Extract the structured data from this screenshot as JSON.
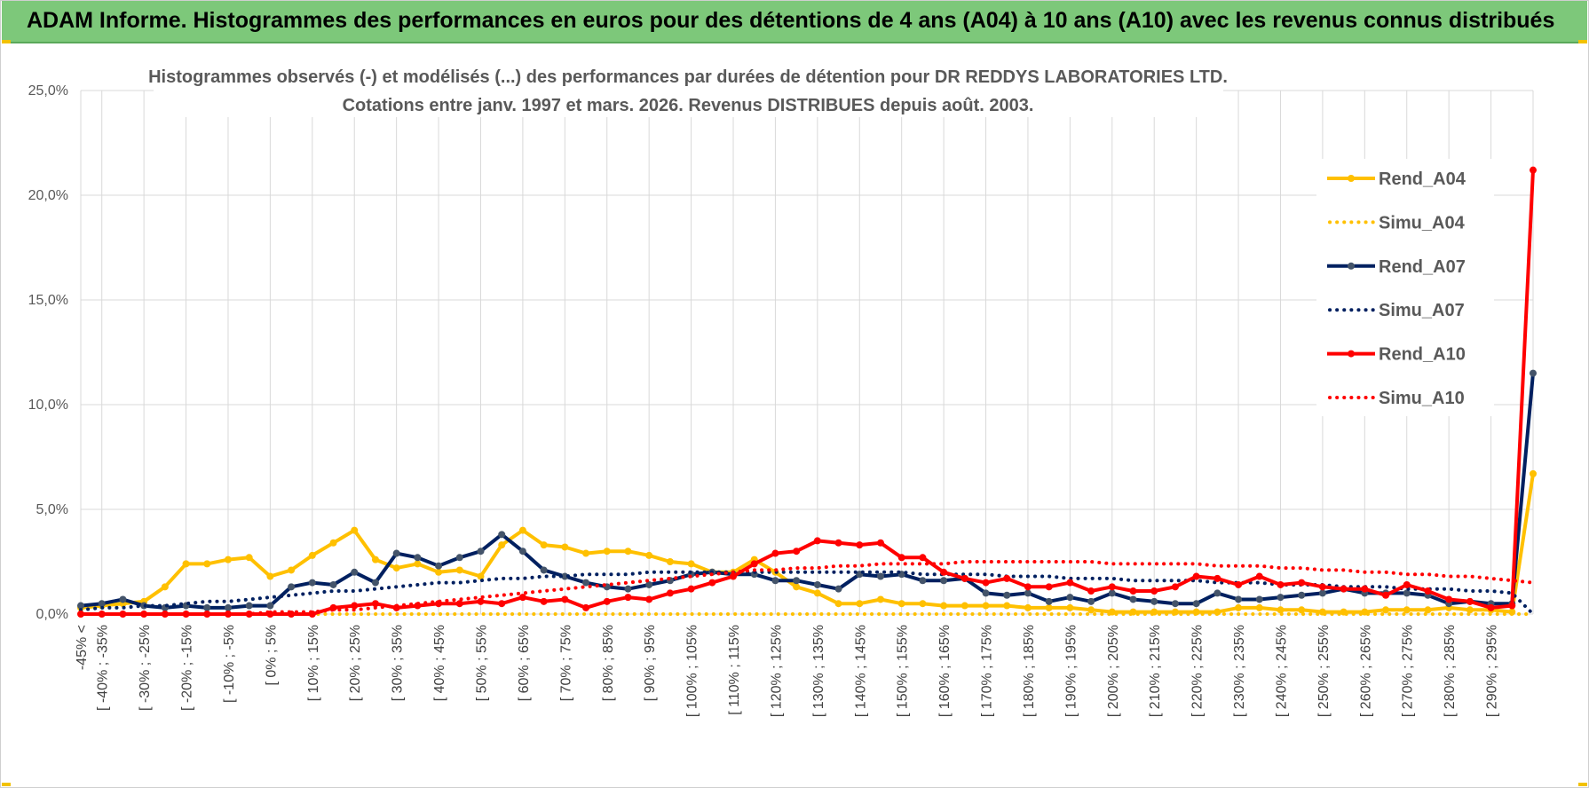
{
  "header": {
    "title": "ADAM Informe. Histogrammes des performances en euros pour des détentions de 4 ans (A04) à 10 ans (A10) avec les revenus connus distribués"
  },
  "colors": {
    "header_bg": "#7dc87a",
    "a04": "#ffc000",
    "a07": "#002060",
    "a10": "#ff0000",
    "grid": "#d9d9d9"
  },
  "chart_data": {
    "type": "line",
    "title_line1": "Histogrammes observés (-) et modélisés (...) des performances par durées de détention pour DR REDDYS LABORATORIES  LTD.",
    "title_line2": "Cotations entre janv. 1997 et mars. 2026.  Revenus DISTRIBUES depuis août. 2003.",
    "ylim": [
      0,
      25
    ],
    "yticks": [
      "0,0%",
      "5,0%",
      "10,0%",
      "15,0%",
      "20,0%",
      "25,0%"
    ],
    "tick_labels": [
      "-45% <",
      "[ -40% ; -35%",
      "[ -30% ; -25%",
      "[ -20% ; -15%",
      "[ -10% ; -5%",
      "[ 0% ; 5%",
      "[ 10% ; 15%",
      "[ 20% ; 25%",
      "[ 30% ; 35%",
      "[ 40% ; 45%",
      "[ 50% ; 55%",
      "[ 60% ; 65%",
      "[ 70% ; 75%",
      "[ 80% ; 85%",
      "[ 90% ; 95%",
      "[ 100% ; 105%",
      "[ 110% ; 115%",
      "[ 120% ; 125%",
      "[ 130% ; 135%",
      "[ 140% ; 145%",
      "[ 150% ; 155%",
      "[ 160% ; 165%",
      "[ 170% ; 175%",
      "[ 180% ; 185%",
      "[ 190% ; 195%",
      "[ 200% ; 205%",
      "[ 210% ; 215%",
      "[ 220% ; 225%",
      "[ 230% ; 235%",
      "[ 240% ; 245%",
      "[ 250% ; 255%",
      "[ 260% ; 265%",
      "[ 270% ; 275%",
      "[ 280% ; 285%",
      "[ 290% ; 295%"
    ],
    "num_points": 70,
    "legend_position": "right",
    "series": [
      {
        "name": "Rend_A04",
        "style": "solid",
        "color": "#ffc000",
        "values": [
          0.3,
          0.4,
          0.5,
          0.6,
          1.3,
          2.4,
          2.4,
          2.6,
          2.7,
          1.8,
          2.1,
          2.8,
          3.4,
          4.0,
          2.6,
          2.2,
          2.4,
          2.0,
          2.1,
          1.8,
          3.3,
          4.0,
          3.3,
          3.2,
          2.9,
          3.0,
          3.0,
          2.8,
          2.5,
          2.4,
          2.0,
          2.0,
          2.6,
          2.0,
          1.3,
          1.0,
          0.5,
          0.5,
          0.7,
          0.5,
          0.5,
          0.4,
          0.4,
          0.4,
          0.4,
          0.3,
          0.3,
          0.3,
          0.2,
          0.1,
          0.1,
          0.1,
          0.1,
          0.1,
          0.1,
          0.3,
          0.3,
          0.2,
          0.2,
          0.1,
          0.1,
          0.1,
          0.2,
          0.2,
          0.2,
          0.3,
          0.2,
          0.2,
          0.1,
          6.7
        ]
      },
      {
        "name": "Simu_A04",
        "style": "dotted",
        "color": "#ffc000",
        "values": [
          0.0,
          0.0,
          0.0,
          0.0,
          0.0,
          0.0,
          0.0,
          0.0,
          0.0,
          0.0,
          0.0,
          0.0,
          0.0,
          0.0,
          0.0,
          0.0,
          0.0,
          0.0,
          0.0,
          0.0,
          0.0,
          0.0,
          0.0,
          0.0,
          0.0,
          0.0,
          0.0,
          0.0,
          0.0,
          0.0,
          0.0,
          0.0,
          0.0,
          0.0,
          0.0,
          0.0,
          0.0,
          0.0,
          0.0,
          0.0,
          0.0,
          0.0,
          0.0,
          0.0,
          0.0,
          0.0,
          0.0,
          0.0,
          0.0,
          0.0,
          0.0,
          0.0,
          0.0,
          0.0,
          0.0,
          0.0,
          0.0,
          0.0,
          0.0,
          0.0,
          0.0,
          0.0,
          0.0,
          0.0,
          0.0,
          0.0,
          0.0,
          0.0,
          0.0,
          0.0
        ]
      },
      {
        "name": "Rend_A07",
        "style": "solid",
        "color": "#002060",
        "values": [
          0.4,
          0.5,
          0.7,
          0.4,
          0.3,
          0.4,
          0.3,
          0.3,
          0.4,
          0.4,
          1.3,
          1.5,
          1.4,
          2.0,
          1.5,
          2.9,
          2.7,
          2.3,
          2.7,
          3.0,
          3.8,
          3.0,
          2.1,
          1.8,
          1.5,
          1.3,
          1.2,
          1.4,
          1.6,
          1.9,
          2.0,
          1.9,
          1.9,
          1.6,
          1.6,
          1.4,
          1.2,
          1.9,
          1.8,
          1.9,
          1.6,
          1.6,
          1.7,
          1.0,
          0.9,
          1.0,
          0.6,
          0.8,
          0.6,
          1.0,
          0.7,
          0.6,
          0.5,
          0.5,
          1.0,
          0.7,
          0.7,
          0.8,
          0.9,
          1.0,
          1.2,
          1.0,
          1.0,
          1.0,
          0.9,
          0.5,
          0.6,
          0.5,
          0.5,
          11.5
        ]
      },
      {
        "name": "Simu_A07",
        "style": "dotted",
        "color": "#002060",
        "values": [
          0.2,
          0.3,
          0.3,
          0.4,
          0.4,
          0.5,
          0.6,
          0.6,
          0.7,
          0.8,
          0.9,
          1.0,
          1.1,
          1.1,
          1.2,
          1.3,
          1.4,
          1.5,
          1.5,
          1.6,
          1.7,
          1.7,
          1.8,
          1.8,
          1.9,
          1.9,
          1.9,
          2.0,
          2.0,
          2.0,
          2.0,
          2.0,
          2.0,
          2.0,
          2.0,
          2.0,
          2.0,
          2.0,
          2.0,
          2.0,
          1.9,
          1.9,
          1.9,
          1.9,
          1.8,
          1.8,
          1.8,
          1.7,
          1.7,
          1.7,
          1.6,
          1.6,
          1.6,
          1.6,
          1.5,
          1.5,
          1.5,
          1.4,
          1.4,
          1.4,
          1.3,
          1.3,
          1.3,
          1.2,
          1.2,
          1.2,
          1.1,
          1.1,
          1.0,
          0.0
        ]
      },
      {
        "name": "Rend_A10",
        "style": "solid",
        "color": "#ff0000",
        "values": [
          0.0,
          0.0,
          0.0,
          0.0,
          0.0,
          0.0,
          0.0,
          0.0,
          0.0,
          0.0,
          0.0,
          0.0,
          0.3,
          0.4,
          0.5,
          0.3,
          0.4,
          0.5,
          0.5,
          0.6,
          0.5,
          0.8,
          0.6,
          0.7,
          0.3,
          0.6,
          0.8,
          0.7,
          1.0,
          1.2,
          1.5,
          1.8,
          2.4,
          2.9,
          3.0,
          3.5,
          3.4,
          3.3,
          3.4,
          2.7,
          2.7,
          2.0,
          1.7,
          1.5,
          1.7,
          1.3,
          1.3,
          1.5,
          1.1,
          1.3,
          1.1,
          1.1,
          1.3,
          1.8,
          1.7,
          1.4,
          1.8,
          1.4,
          1.5,
          1.3,
          1.2,
          1.2,
          0.9,
          1.4,
          1.1,
          0.7,
          0.6,
          0.3,
          0.4,
          21.2
        ]
      },
      {
        "name": "Simu_A10",
        "style": "dotted",
        "color": "#ff0000",
        "values": [
          0.0,
          0.0,
          0.0,
          0.0,
          0.0,
          0.0,
          0.0,
          0.0,
          0.0,
          0.1,
          0.1,
          0.1,
          0.2,
          0.2,
          0.3,
          0.4,
          0.5,
          0.6,
          0.7,
          0.8,
          0.9,
          1.0,
          1.1,
          1.2,
          1.3,
          1.4,
          1.5,
          1.6,
          1.7,
          1.8,
          1.9,
          2.0,
          2.1,
          2.1,
          2.2,
          2.2,
          2.3,
          2.3,
          2.4,
          2.4,
          2.4,
          2.4,
          2.5,
          2.5,
          2.5,
          2.5,
          2.5,
          2.5,
          2.5,
          2.4,
          2.4,
          2.4,
          2.4,
          2.4,
          2.3,
          2.3,
          2.3,
          2.2,
          2.2,
          2.1,
          2.1,
          2.0,
          2.0,
          1.9,
          1.9,
          1.8,
          1.8,
          1.7,
          1.6,
          1.5
        ]
      }
    ]
  }
}
